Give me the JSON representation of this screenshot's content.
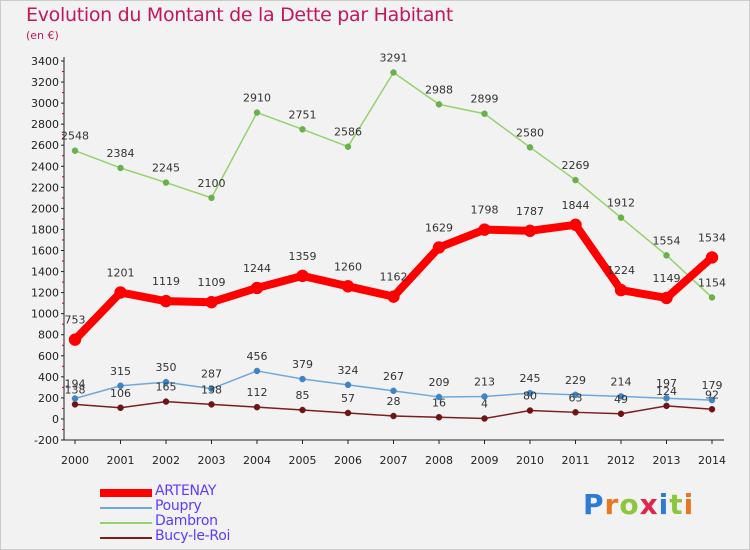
{
  "title": "Evolution du Montant de la Dette par Habitant",
  "subtitle": "(en €)",
  "brand": {
    "text": "Proxiti",
    "letters": [
      "P",
      "r",
      "o",
      "x",
      "i",
      "t",
      "i"
    ],
    "colors": [
      "#2e7bd6",
      "#e87722",
      "#8cc63f",
      "#e0264b",
      "#2e7bd6",
      "#8cc63f",
      "#e87722"
    ]
  },
  "chart_data": {
    "type": "line",
    "x": [
      "2000",
      "2001",
      "2002",
      "2003",
      "2004",
      "2005",
      "2006",
      "2007",
      "2008",
      "2009",
      "2010",
      "2011",
      "2012",
      "2013",
      "2014"
    ],
    "ylim": [
      -200,
      3400
    ],
    "yticks": [
      -200,
      0,
      200,
      400,
      600,
      800,
      1000,
      1200,
      1400,
      1600,
      1800,
      2000,
      2200,
      2400,
      2600,
      2800,
      3000,
      3200,
      3400
    ],
    "grid": false,
    "legend_position": "bottom-left",
    "series": [
      {
        "name": "ARTENAY",
        "color": "#ff0000",
        "point_color": "#ff0000",
        "width": 8,
        "marker": 6,
        "label_dy": -16,
        "values": [
          753,
          1201,
          1119,
          1109,
          1244,
          1359,
          1260,
          1162,
          1629,
          1798,
          1787,
          1844,
          1224,
          1149,
          1534
        ],
        "labels": [
          "753",
          "1201",
          "1119",
          "1109",
          "1244",
          "1359",
          "1260",
          "1162",
          "1629",
          "1798",
          "1787",
          "1844",
          "1224",
          "1149",
          "1534"
        ]
      },
      {
        "name": "Poupry",
        "color": "#6fa8dc",
        "point_color": "#3d85c6",
        "width": 1.5,
        "marker": 3,
        "label_dy": -11,
        "values": [
          194,
          315,
          350,
          287,
          456,
          379,
          324,
          267,
          209,
          213,
          245,
          229,
          214,
          197,
          179
        ],
        "labels": [
          "194",
          "315",
          "350",
          "287",
          "456",
          "379",
          "324",
          "267",
          "209",
          "213",
          "245",
          "229",
          "214",
          "197",
          "179"
        ]
      },
      {
        "name": "Dambron",
        "color": "#93d36b",
        "point_color": "#6ab04c",
        "width": 1.5,
        "marker": 3,
        "label_dy": -11,
        "values": [
          2548,
          2384,
          2245,
          2100,
          2910,
          2751,
          2586,
          3291,
          2988,
          2899,
          2580,
          2269,
          1912,
          1554,
          1154
        ],
        "labels": [
          "2548",
          "2384",
          "2245",
          "2100",
          "2910",
          "2751",
          "2586",
          "3291",
          "2988",
          "2899",
          "2580",
          "2269",
          "1912",
          "1554",
          "1154"
        ]
      },
      {
        "name": "Bucy-le-Roi",
        "color": "#7b1e1e",
        "point_color": "#6d1515",
        "width": 1.5,
        "marker": 3,
        "label_dy": -11,
        "values": [
          138,
          106,
          165,
          138,
          112,
          85,
          57,
          28,
          16,
          4,
          80,
          63,
          49,
          124,
          92
        ],
        "labels": [
          "138",
          "106",
          "165",
          "138",
          "112",
          "85",
          "57",
          "28",
          "16",
          "4",
          "80",
          "63",
          "49",
          "124",
          "92"
        ]
      }
    ]
  }
}
